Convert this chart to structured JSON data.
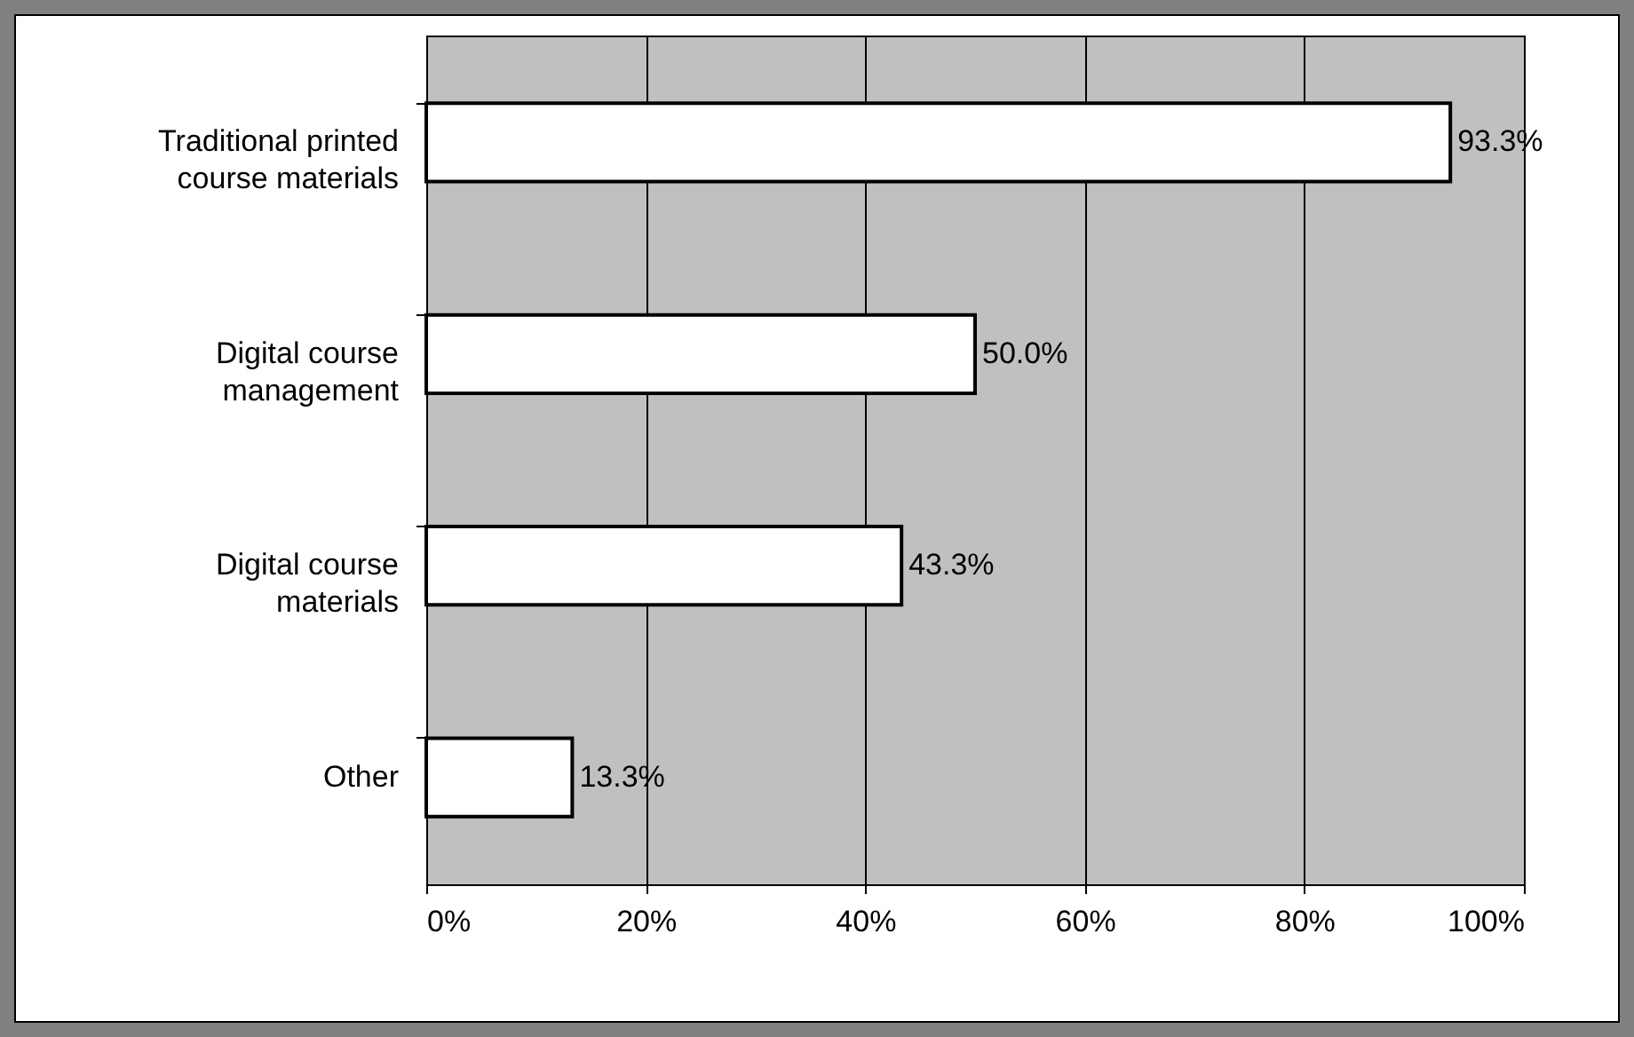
{
  "chart_data": {
    "type": "bar",
    "orientation": "horizontal",
    "categories": [
      "Traditional printed course materials",
      "Digital course management",
      "Digital course materials",
      "Other"
    ],
    "values": [
      93.3,
      50.0,
      43.3,
      13.3
    ],
    "value_labels": [
      "93.3%",
      "50.0%",
      "43.3%",
      "13.3%"
    ],
    "color": "#ffffff",
    "xlim": [
      0,
      100
    ],
    "xticks": [
      {
        "value": 0,
        "label": "0%"
      },
      {
        "value": 20,
        "label": "20%"
      },
      {
        "value": 40,
        "label": "40%"
      },
      {
        "value": 60,
        "label": "60%"
      },
      {
        "value": 80,
        "label": "80%"
      },
      {
        "value": 100,
        "label": "100%"
      }
    ],
    "grid": "x"
  }
}
